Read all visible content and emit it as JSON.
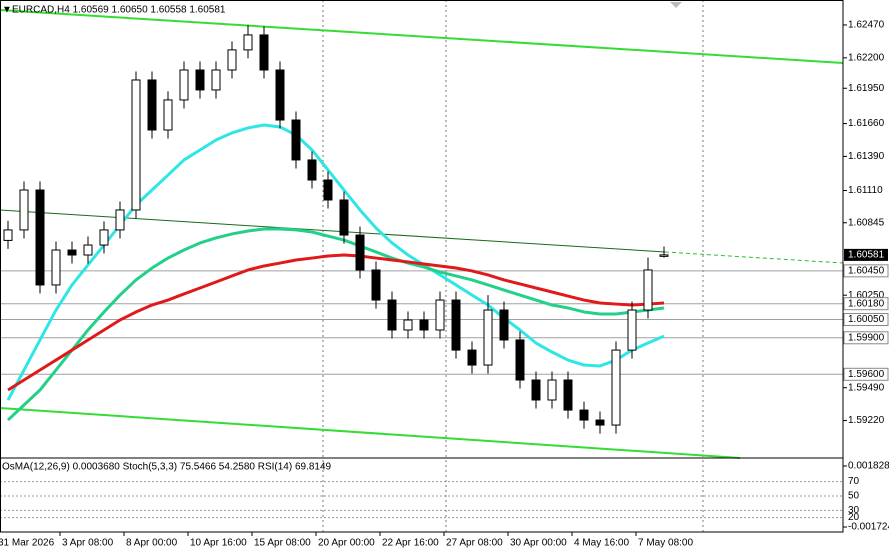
{
  "chart_data": {
    "type": "candlestick",
    "title": "EURCAD,H4  1.60569 1.60650 1.60558 1.60581",
    "categories": [
      null,
      "31 Mar 2026",
      null,
      null,
      null,
      "3 Apr 08:00",
      null,
      null,
      null,
      "8 Apr 00:00",
      null,
      null,
      null,
      "10 Apr 16:00",
      null,
      null,
      null,
      "15 Apr 08:00",
      null,
      null,
      null,
      "20 Apr 00:00",
      null,
      null,
      null,
      "22 Apr 16:00",
      null,
      null,
      null,
      "27 Apr 08:00",
      null,
      null,
      null,
      "30 Apr 00:00",
      null,
      null,
      null,
      "4 May 16:00",
      null,
      null,
      null,
      "7 May 08:00"
    ],
    "open": [
      1.607,
      1.60786,
      1.61114,
      1.60334,
      1.60621,
      1.6058,
      1.60662,
      1.60786,
      1.6095,
      1.62018,
      1.61607,
      1.61854,
      1.621,
      1.61936,
      1.621,
      1.62265,
      1.62388,
      1.621,
      1.61689,
      1.61361,
      1.61196,
      1.61032,
      1.60744,
      1.60457,
      1.6021,
      1.59964,
      1.60046,
      1.59964,
      1.6021,
      1.59799,
      1.59676,
      1.60128,
      1.59882,
      1.59553,
      1.59389,
      1.59553,
      1.59306,
      1.59224,
      1.59183,
      1.59799,
      1.60128,
      1.60569
    ],
    "high": [
      1.6086,
      1.61184,
      1.61184,
      1.60691,
      1.60691,
      1.60732,
      1.60856,
      1.6102,
      1.62088,
      1.62088,
      1.61924,
      1.6217,
      1.6217,
      1.6217,
      1.62335,
      1.6247,
      1.62458,
      1.6217,
      1.61759,
      1.61431,
      1.61266,
      1.61102,
      1.60814,
      1.60527,
      1.6028,
      1.60116,
      1.60116,
      1.6028,
      1.6028,
      1.59869,
      1.6025,
      1.60198,
      1.59952,
      1.59623,
      1.59623,
      1.59623,
      1.59376,
      1.59294,
      1.59869,
      1.60198,
      1.6056,
      1.6065
    ],
    "low": [
      1.6063,
      1.60716,
      1.60264,
      1.60264,
      1.6051,
      1.6051,
      1.60592,
      1.60716,
      1.6088,
      1.61537,
      1.61537,
      1.61784,
      1.61866,
      1.61866,
      1.6203,
      1.62195,
      1.6203,
      1.61619,
      1.61291,
      1.61126,
      1.60962,
      1.60674,
      1.60387,
      1.6014,
      1.59894,
      1.59894,
      1.59894,
      1.59894,
      1.59729,
      1.59606,
      1.59606,
      1.59812,
      1.59483,
      1.59319,
      1.59319,
      1.59236,
      1.59154,
      1.59113,
      1.59113,
      1.59729,
      1.60058,
      1.60558
    ],
    "close": [
      1.60786,
      1.61114,
      1.60334,
      1.60621,
      1.6058,
      1.60662,
      1.60786,
      1.6095,
      1.62018,
      1.61607,
      1.61854,
      1.621,
      1.61936,
      1.621,
      1.62265,
      1.62388,
      1.621,
      1.61689,
      1.61361,
      1.61196,
      1.61032,
      1.60744,
      1.60457,
      1.6021,
      1.59964,
      1.60046,
      1.59964,
      1.6021,
      1.59799,
      1.59676,
      1.60128,
      1.59882,
      1.59553,
      1.59389,
      1.59553,
      1.59306,
      1.59224,
      1.59183,
      1.59799,
      1.60128,
      1.60457,
      1.60581
    ],
    "lines": [
      {
        "color": "#2ee6e6",
        "values": [
          1.59389,
          1.59635,
          1.59882,
          1.60128,
          1.60334,
          1.60498,
          1.60662,
          1.60827,
          1.60991,
          1.61114,
          1.61237,
          1.61361,
          1.61443,
          1.61525,
          1.61583,
          1.61624,
          1.61648,
          1.61632,
          1.61566,
          1.61443,
          1.61279,
          1.61114,
          1.6095,
          1.60802,
          1.60679,
          1.6058,
          1.60498,
          1.60416,
          1.60334,
          1.60251,
          1.60169,
          1.60062,
          1.59964,
          1.59857,
          1.59783,
          1.59717,
          1.59676,
          1.59668,
          1.59717,
          1.59799,
          1.59857,
          1.59914
        ]
      },
      {
        "color": "#22d08a",
        "values": [
          1.59224,
          1.59348,
          1.59471,
          1.59635,
          1.59799,
          1.59964,
          1.60112,
          1.60251,
          1.60375,
          1.60473,
          1.60555,
          1.60621,
          1.60679,
          1.6072,
          1.60753,
          1.60777,
          1.60794,
          1.60794,
          1.60786,
          1.60769,
          1.60736,
          1.60703,
          1.60654,
          1.60605,
          1.60555,
          1.60514,
          1.60481,
          1.6044,
          1.60408,
          1.60375,
          1.60334,
          1.60292,
          1.60251,
          1.6021,
          1.60169,
          1.60145,
          1.60112,
          1.60095,
          1.60095,
          1.60112,
          1.60128,
          1.60145
        ]
      },
      {
        "color": "#e01a1a",
        "values": [
          1.59471,
          1.59553,
          1.59635,
          1.59717,
          1.59799,
          1.59882,
          1.59964,
          1.60046,
          1.60112,
          1.60169,
          1.6021,
          1.6026,
          1.60309,
          1.60358,
          1.60408,
          1.60457,
          1.6049,
          1.60514,
          1.60539,
          1.60555,
          1.60572,
          1.6058,
          1.60572,
          1.60555,
          1.60539,
          1.60523,
          1.60506,
          1.6049,
          1.60473,
          1.60449,
          1.60416,
          1.60375,
          1.60342,
          1.60309,
          1.60276,
          1.60243,
          1.6021,
          1.60186,
          1.60177,
          1.60169,
          1.60177,
          1.60186
        ]
      }
    ],
    "ylim": [
      1.58937,
      1.62675
    ],
    "yticks": [
      {
        "value": 1.6247,
        "label": "1.62470"
      },
      {
        "value": 1.622,
        "label": "1.62200"
      },
      {
        "value": 1.6195,
        "label": "1.61950"
      },
      {
        "value": 1.6166,
        "label": "1.61660"
      },
      {
        "value": 1.6139,
        "label": "1.61390"
      },
      {
        "value": 1.6111,
        "label": "1.61110"
      },
      1.60845,
      {
        "value": 1.6025,
        "label": "1.60250"
      },
      {
        "value": 1.5949,
        "label": "1.59490"
      },
      {
        "value": 1.5922,
        "label": "1.59220"
      }
    ],
    "levels": [
      {
        "value": 1.6045,
        "label": "1.60450"
      },
      {
        "value": 1.6018,
        "label": "1.60180"
      },
      {
        "value": 1.6005,
        "label": "1.60050"
      },
      {
        "value": 1.599,
        "label": "1.59900"
      },
      {
        "value": 1.596,
        "label": "1.59600"
      }
    ],
    "current_price": 1.60581,
    "indicator_label": "OsMA(12,26,9) 0.0003680  Stoch(5,3,3) 75.5466 54.2580  RSI(14) 69.8149",
    "osma_lim": [
      -0.002015,
      0.002177
    ],
    "osma_ticks": [
      0.001828,
      -0.001724
    ],
    "oscillator_lim": [
      0,
      100
    ],
    "oscillator_ticks": [
      70,
      50,
      30,
      20
    ]
  }
}
